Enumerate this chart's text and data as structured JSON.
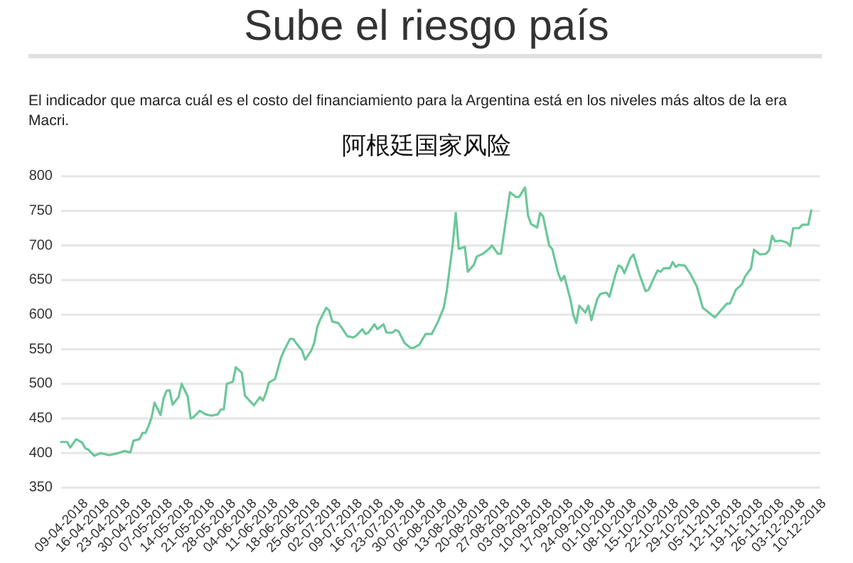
{
  "chart_data": {
    "type": "line",
    "title": "Sube el riesgo país",
    "subtitle": "El indicador que marca cuál es el costo del financiamiento para la Argentina está en los niveles más altos de la era Macri.",
    "annotations": [
      "阿根廷国家风险"
    ],
    "x": [
      "2018-04-02",
      "2018-04-04",
      "2018-04-05",
      "2018-04-07",
      "2018-04-09",
      "2018-04-10",
      "2018-04-11",
      "2018-04-13",
      "2018-04-15",
      "2018-04-18",
      "2018-04-21",
      "2018-04-23",
      "2018-04-25",
      "2018-04-26",
      "2018-04-28",
      "2018-04-29",
      "2018-04-30",
      "2018-05-01",
      "2018-05-02",
      "2018-05-03",
      "2018-05-05",
      "2018-05-06",
      "2018-05-07",
      "2018-05-08",
      "2018-05-09",
      "2018-05-11",
      "2018-05-12",
      "2018-05-14",
      "2018-05-15",
      "2018-05-16",
      "2018-05-18",
      "2018-05-20",
      "2018-05-22",
      "2018-05-24",
      "2018-05-25",
      "2018-05-26",
      "2018-05-27",
      "2018-05-29",
      "2018-05-30",
      "2018-06-01",
      "2018-06-02",
      "2018-06-05",
      "2018-06-07",
      "2018-06-08",
      "2018-06-09",
      "2018-06-10",
      "2018-06-12",
      "2018-06-14",
      "2018-06-15",
      "2018-06-17",
      "2018-06-18",
      "2018-06-19",
      "2018-06-21",
      "2018-06-22",
      "2018-06-24",
      "2018-06-25",
      "2018-06-26",
      "2018-06-27",
      "2018-06-29",
      "2018-06-30",
      "2018-07-01",
      "2018-07-03",
      "2018-07-04",
      "2018-07-06",
      "2018-07-08",
      "2018-07-09",
      "2018-07-11",
      "2018-07-12",
      "2018-07-13",
      "2018-07-15",
      "2018-07-16",
      "2018-07-18",
      "2018-07-19",
      "2018-07-21",
      "2018-07-22",
      "2018-07-23",
      "2018-07-25",
      "2018-07-27",
      "2018-07-28",
      "2018-07-30",
      "2018-07-31",
      "2018-08-01",
      "2018-08-03",
      "2018-08-05",
      "2018-08-07",
      "2018-08-08",
      "2018-08-10",
      "2018-08-11",
      "2018-08-12",
      "2018-08-14",
      "2018-08-15",
      "2018-08-17",
      "2018-08-18",
      "2018-08-20",
      "2018-08-22",
      "2018-08-23",
      "2018-08-25",
      "2018-08-26",
      "2018-08-29",
      "2018-08-31",
      "2018-09-01",
      "2018-09-03",
      "2018-09-04",
      "2018-09-05",
      "2018-09-07",
      "2018-09-08",
      "2018-09-09",
      "2018-09-11",
      "2018-09-12",
      "2018-09-14",
      "2018-09-15",
      "2018-09-16",
      "2018-09-18",
      "2018-09-19",
      "2018-09-20",
      "2018-09-21",
      "2018-09-23",
      "2018-09-24",
      "2018-09-25",
      "2018-09-27",
      "2018-09-28",
      "2018-09-30",
      "2018-10-01",
      "2018-10-03",
      "2018-10-04",
      "2018-10-05",
      "2018-10-06",
      "2018-10-08",
      "2018-10-09",
      "2018-10-11",
      "2018-10-13",
      "2018-10-14",
      "2018-10-16",
      "2018-10-17",
      "2018-10-18",
      "2018-10-19",
      "2018-10-21",
      "2018-10-22",
      "2018-10-23",
      "2018-10-24",
      "2018-10-26",
      "2018-10-28",
      "2018-10-30",
      "2018-11-01",
      "2018-11-03",
      "2018-11-05",
      "2018-11-07",
      "2018-11-09",
      "2018-11-10",
      "2018-11-12",
      "2018-11-14",
      "2018-11-15",
      "2018-11-17",
      "2018-11-18",
      "2018-11-20",
      "2018-11-22",
      "2018-11-23",
      "2018-11-24",
      "2018-11-25",
      "2018-11-27",
      "2018-11-29",
      "2018-11-30",
      "2018-12-01",
      "2018-12-03",
      "2018-12-04",
      "2018-12-06",
      "2018-12-07"
    ],
    "series": [
      {
        "color": "#6cc79a",
        "values": [
          416,
          416,
          408,
          420,
          415,
          407,
          405,
          396,
          400,
          397,
          400,
          403,
          401,
          418,
          420,
          429,
          429,
          439,
          451,
          473,
          455,
          479,
          490,
          491,
          470,
          481,
          500,
          482,
          450,
          452,
          461,
          456,
          454,
          456,
          463,
          463,
          500,
          503,
          524,
          516,
          483,
          469,
          481,
          476,
          487,
          502,
          507,
          538,
          548,
          565,
          565,
          559,
          548,
          535,
          548,
          559,
          582,
          593,
          610,
          606,
          590,
          588,
          582,
          569,
          567,
          570,
          579,
          572,
          574,
          586,
          579,
          586,
          574,
          574,
          578,
          576,
          559,
          552,
          552,
          557,
          565,
          572,
          572,
          589,
          610,
          634,
          702,
          747,
          695,
          698,
          662,
          672,
          684,
          688,
          695,
          700,
          688,
          688,
          777,
          770,
          770,
          784,
          743,
          731,
          726,
          747,
          742,
          700,
          695,
          660,
          649,
          656,
          623,
          600,
          588,
          613,
          603,
          613,
          592,
          623,
          630,
          632,
          626,
          658,
          671,
          669,
          660,
          682,
          687,
          658,
          634,
          636,
          655,
          664,
          662,
          667,
          667,
          676,
          669,
          672,
          671,
          658,
          641,
          610,
          603,
          596,
          606,
          616,
          616,
          636,
          644,
          655,
          667,
          694,
          687,
          688,
          693,
          714,
          706,
          707,
          704,
          699,
          725,
          725,
          730,
          730,
          751
        ]
      }
    ],
    "xlim": [
      "2018-04-02",
      "2018-12-10"
    ],
    "xticks": [
      {
        "value": "2018-04-09",
        "label": "09-04-2018"
      },
      {
        "value": "2018-04-16",
        "label": "16-04-2018"
      },
      {
        "value": "2018-04-23",
        "label": "23-04-2018"
      },
      {
        "value": "2018-04-30",
        "label": "30-04-2018"
      },
      {
        "value": "2018-05-07",
        "label": "07-05-2018"
      },
      {
        "value": "2018-05-14",
        "label": "14-05-2018"
      },
      {
        "value": "2018-05-21",
        "label": "21-05-2018"
      },
      {
        "value": "2018-05-28",
        "label": "28-05-2018"
      },
      {
        "value": "2018-06-04",
        "label": "04-06-2018"
      },
      {
        "value": "2018-06-11",
        "label": "11-06-2018"
      },
      {
        "value": "2018-06-18",
        "label": "18-06-2018"
      },
      {
        "value": "2018-06-25",
        "label": "25-06-2018"
      },
      {
        "value": "2018-07-02",
        "label": "02-07-2018"
      },
      {
        "value": "2018-07-09",
        "label": "09-07-2018"
      },
      {
        "value": "2018-07-16",
        "label": "16-07-2018"
      },
      {
        "value": "2018-07-23",
        "label": "23-07-2018"
      },
      {
        "value": "2018-07-30",
        "label": "30-07-2018"
      },
      {
        "value": "2018-08-06",
        "label": "06-08-2018"
      },
      {
        "value": "2018-08-13",
        "label": "13-08-2018"
      },
      {
        "value": "2018-08-20",
        "label": "20-08-2018"
      },
      {
        "value": "2018-08-27",
        "label": "27-08-2018"
      },
      {
        "value": "2018-09-03",
        "label": "03-09-2018"
      },
      {
        "value": "2018-09-10",
        "label": "10-09-2018"
      },
      {
        "value": "2018-09-17",
        "label": "17-09-2018"
      },
      {
        "value": "2018-09-24",
        "label": "24-09-2018"
      },
      {
        "value": "2018-10-01",
        "label": "01-10-2018"
      },
      {
        "value": "2018-10-08",
        "label": "08-10-2018"
      },
      {
        "value": "2018-10-15",
        "label": "15-10-2018"
      },
      {
        "value": "2018-10-22",
        "label": "22-10-2018"
      },
      {
        "value": "2018-10-29",
        "label": "29-10-2018"
      },
      {
        "value": "2018-11-05",
        "label": "05-11-2018"
      },
      {
        "value": "2018-11-12",
        "label": "12-11-2018"
      },
      {
        "value": "2018-11-19",
        "label": "19-11-2018"
      },
      {
        "value": "2018-11-26",
        "label": "26-11-2018"
      },
      {
        "value": "2018-12-03",
        "label": "03-12-2018"
      },
      {
        "value": "2018-12-10",
        "label": "10-12-2018"
      }
    ],
    "ylim": [
      350,
      800
    ],
    "yticks": [
      350,
      400,
      450,
      500,
      550,
      600,
      650,
      700,
      750,
      800
    ],
    "grid": "y"
  }
}
